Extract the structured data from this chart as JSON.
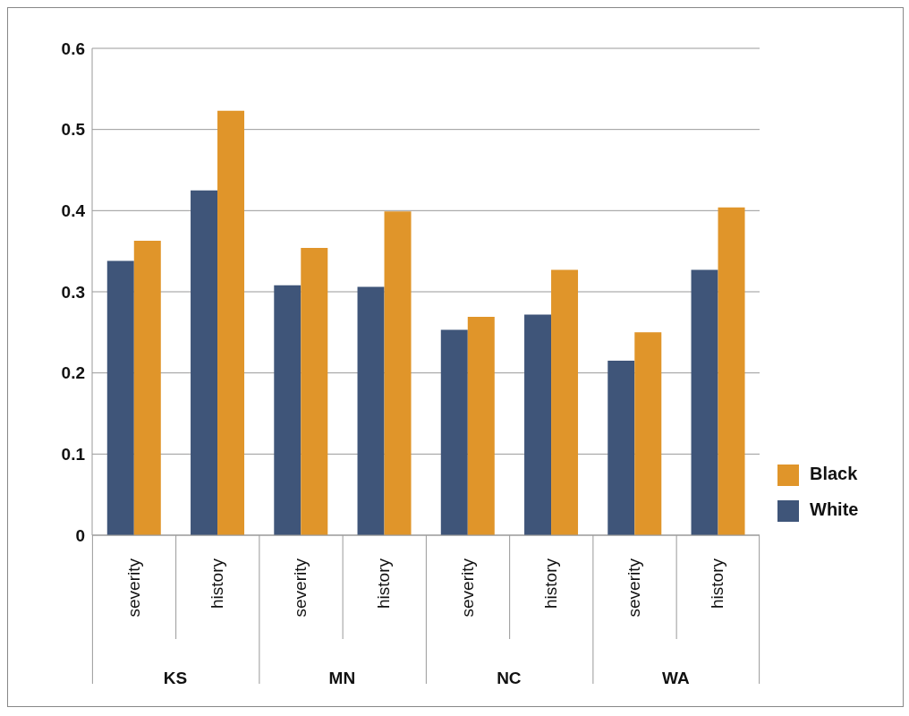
{
  "chart_data": {
    "type": "bar",
    "categories": [
      "severity",
      "history",
      "severity",
      "history",
      "severity",
      "history",
      "severity",
      "history"
    ],
    "annotations": [
      "KS",
      "MN",
      "NC",
      "WA"
    ],
    "series": [
      {
        "name": "White",
        "color": "#3f5579",
        "values": [
          0.338,
          0.425,
          0.308,
          0.306,
          0.253,
          0.272,
          0.215,
          0.327
        ]
      },
      {
        "name": "Black",
        "color": "#e0952a",
        "values": [
          0.363,
          0.523,
          0.354,
          0.399,
          0.269,
          0.327,
          0.25,
          0.404
        ]
      }
    ],
    "ylim": [
      0,
      0.6
    ],
    "yticks": [
      0,
      0.1,
      0.2,
      0.3,
      0.4,
      0.5,
      0.6
    ],
    "grid": "y",
    "legend": "right"
  }
}
